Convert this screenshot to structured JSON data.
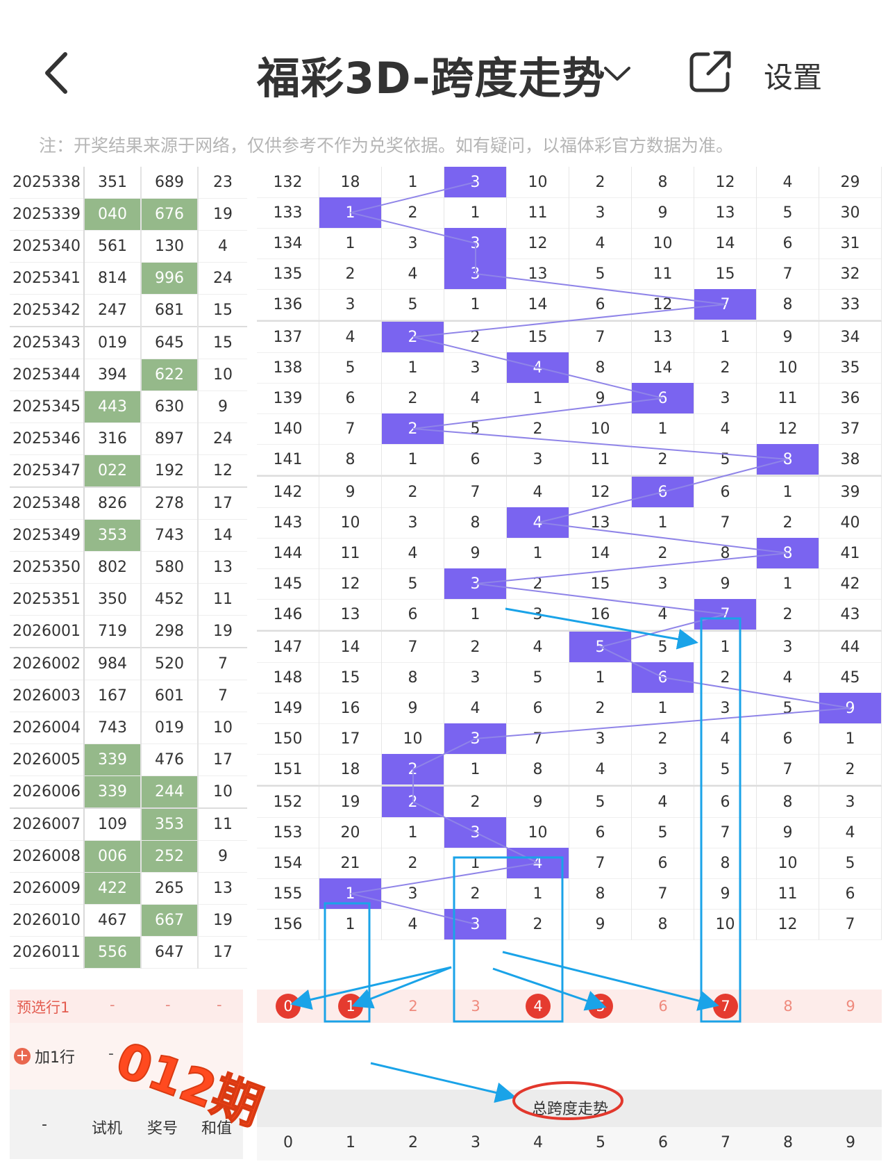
{
  "header": {
    "title": "福彩3D-跨度走势",
    "settings_label": "设置"
  },
  "notice": "注：开奖结果来源于网络，仅供参考不作为兑奖依据。如有疑问，以福体彩官方数据为准。",
  "rows": [
    {
      "issue": "2025338",
      "test": "351",
      "prize": "689",
      "sum": "23",
      "vals": [
        "132",
        "18",
        "1",
        "3",
        "10",
        "2",
        "8",
        "12",
        "4",
        "29"
      ]
    },
    {
      "issue": "2025339",
      "test": "040",
      "prize": "676",
      "sum": "19",
      "vals": [
        "133",
        "1",
        "2",
        "1",
        "11",
        "3",
        "9",
        "13",
        "5",
        "30"
      ]
    },
    {
      "issue": "2025340",
      "test": "561",
      "prize": "130",
      "sum": "4",
      "vals": [
        "134",
        "1",
        "3",
        "3",
        "12",
        "4",
        "10",
        "14",
        "6",
        "31"
      ]
    },
    {
      "issue": "2025341",
      "test": "814",
      "prize": "996",
      "sum": "24",
      "vals": [
        "135",
        "2",
        "4",
        "3",
        "13",
        "5",
        "11",
        "15",
        "7",
        "32"
      ]
    },
    {
      "issue": "2025342",
      "test": "247",
      "prize": "681",
      "sum": "15",
      "vals": [
        "136",
        "3",
        "5",
        "1",
        "14",
        "6",
        "12",
        "7",
        "8",
        "33"
      ]
    },
    {
      "issue": "2025343",
      "test": "019",
      "prize": "645",
      "sum": "15",
      "vals": [
        "137",
        "4",
        "2",
        "2",
        "15",
        "7",
        "13",
        "1",
        "9",
        "34"
      ]
    },
    {
      "issue": "2025344",
      "test": "394",
      "prize": "622",
      "sum": "10",
      "vals": [
        "138",
        "5",
        "1",
        "3",
        "4",
        "8",
        "14",
        "2",
        "10",
        "35"
      ]
    },
    {
      "issue": "2025345",
      "test": "443",
      "prize": "630",
      "sum": "9",
      "vals": [
        "139",
        "6",
        "2",
        "4",
        "1",
        "9",
        "6",
        "3",
        "11",
        "36"
      ]
    },
    {
      "issue": "2025346",
      "test": "316",
      "prize": "897",
      "sum": "24",
      "vals": [
        "140",
        "7",
        "2",
        "5",
        "2",
        "10",
        "1",
        "4",
        "12",
        "37"
      ]
    },
    {
      "issue": "2025347",
      "test": "022",
      "prize": "192",
      "sum": "12",
      "vals": [
        "141",
        "8",
        "1",
        "6",
        "3",
        "11",
        "2",
        "5",
        "8",
        "38"
      ]
    },
    {
      "issue": "2025348",
      "test": "826",
      "prize": "278",
      "sum": "17",
      "vals": [
        "142",
        "9",
        "2",
        "7",
        "4",
        "12",
        "6",
        "6",
        "1",
        "39"
      ]
    },
    {
      "issue": "2025349",
      "test": "353",
      "prize": "743",
      "sum": "14",
      "vals": [
        "143",
        "10",
        "3",
        "8",
        "4",
        "13",
        "1",
        "7",
        "2",
        "40"
      ]
    },
    {
      "issue": "2025350",
      "test": "802",
      "prize": "580",
      "sum": "13",
      "vals": [
        "144",
        "11",
        "4",
        "9",
        "1",
        "14",
        "2",
        "8",
        "8",
        "41"
      ]
    },
    {
      "issue": "2025351",
      "test": "350",
      "prize": "452",
      "sum": "11",
      "vals": [
        "145",
        "12",
        "5",
        "3",
        "2",
        "15",
        "3",
        "9",
        "1",
        "42"
      ]
    },
    {
      "issue": "2026001",
      "test": "719",
      "prize": "298",
      "sum": "19",
      "vals": [
        "146",
        "13",
        "6",
        "1",
        "3",
        "16",
        "4",
        "7",
        "2",
        "43"
      ]
    },
    {
      "issue": "2026002",
      "test": "984",
      "prize": "520",
      "sum": "7",
      "vals": [
        "147",
        "14",
        "7",
        "2",
        "4",
        "5",
        "5",
        "1",
        "3",
        "44"
      ]
    },
    {
      "issue": "2026003",
      "test": "167",
      "prize": "601",
      "sum": "7",
      "vals": [
        "148",
        "15",
        "8",
        "3",
        "5",
        "1",
        "6",
        "2",
        "4",
        "45"
      ]
    },
    {
      "issue": "2026004",
      "test": "743",
      "prize": "019",
      "sum": "10",
      "vals": [
        "149",
        "16",
        "9",
        "4",
        "6",
        "2",
        "1",
        "3",
        "5",
        "9"
      ]
    },
    {
      "issue": "2026005",
      "test": "339",
      "prize": "476",
      "sum": "17",
      "vals": [
        "150",
        "17",
        "10",
        "3",
        "7",
        "3",
        "2",
        "4",
        "6",
        "1"
      ]
    },
    {
      "issue": "2026006",
      "test": "339",
      "prize": "244",
      "sum": "10",
      "vals": [
        "151",
        "18",
        "2",
        "1",
        "8",
        "4",
        "3",
        "5",
        "7",
        "2"
      ]
    },
    {
      "issue": "2026007",
      "test": "109",
      "prize": "353",
      "sum": "11",
      "vals": [
        "152",
        "19",
        "2",
        "2",
        "9",
        "5",
        "4",
        "6",
        "8",
        "3"
      ]
    },
    {
      "issue": "2026008",
      "test": "006",
      "prize": "252",
      "sum": "9",
      "vals": [
        "153",
        "20",
        "1",
        "3",
        "10",
        "6",
        "5",
        "7",
        "9",
        "4"
      ]
    },
    {
      "issue": "2026009",
      "test": "422",
      "prize": "265",
      "sum": "13",
      "vals": [
        "154",
        "21",
        "2",
        "1",
        "4",
        "7",
        "6",
        "8",
        "10",
        "5"
      ]
    },
    {
      "issue": "2026010",
      "test": "467",
      "prize": "667",
      "sum": "19",
      "vals": [
        "155",
        "1",
        "3",
        "2",
        "1",
        "8",
        "7",
        "9",
        "11",
        "6"
      ]
    },
    {
      "issue": "2026011",
      "test": "556",
      "prize": "647",
      "sum": "17",
      "vals": [
        "156",
        "1",
        "4",
        "3",
        "2",
        "9",
        "8",
        "10",
        "12",
        "7"
      ]
    }
  ],
  "preselect": {
    "label": "预选行1",
    "dashes": [
      "-",
      "-",
      "-"
    ],
    "nums": [
      "0",
      "1",
      "2",
      "3",
      "4",
      "5",
      "6",
      "7",
      "8",
      "9"
    ],
    "selected": [
      0,
      1,
      4,
      5,
      7
    ]
  },
  "add_row": {
    "label": "加1行",
    "dash": "-"
  },
  "footer": {
    "dash": "-",
    "test_label": "试机",
    "prize_label": "奖号",
    "sum_label": "和值",
    "chart_title": "总跨度走势",
    "digits": [
      "0",
      "1",
      "2",
      "3",
      "4",
      "5",
      "6",
      "7",
      "8",
      "9"
    ]
  },
  "annotation": "012期",
  "colors": {
    "hit": "#7a64f0",
    "green_cell": "#95b98a",
    "ball": "#e53b2f",
    "annotation": "#1aa3e8"
  }
}
